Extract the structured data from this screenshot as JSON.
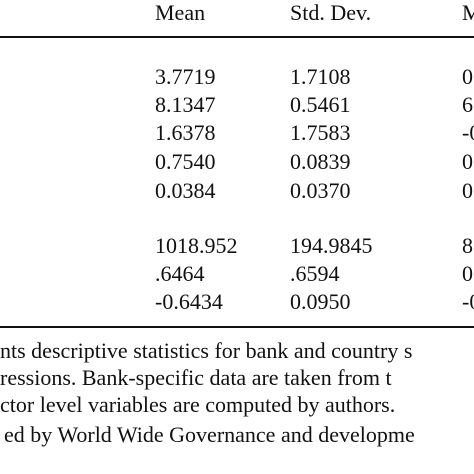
{
  "table": {
    "header": [
      "Mean",
      "Std. Dev.",
      "M"
    ],
    "rows": [
      [
        "3.7719",
        "1.7108",
        "0"
      ],
      [
        "8.1347",
        "0.5461",
        "6"
      ],
      [
        "1.6378",
        "1.7583",
        "-0"
      ],
      [
        "0.7540",
        "0.0839",
        "0"
      ],
      [
        "0.0384",
        "0.0370",
        "0"
      ],
      [
        "1018.952",
        "194.9845",
        "8"
      ],
      [
        ".6464",
        ".6594",
        "0"
      ],
      [
        "-0.6434",
        "0.0950",
        "-0"
      ]
    ]
  },
  "notes": [
    "nts descriptive statistics for bank and country s",
    "ressions. Bank-specific data are taken from t",
    "ctor level variables are computed by authors.",
    "ed by World Wide Governance and developme"
  ]
}
